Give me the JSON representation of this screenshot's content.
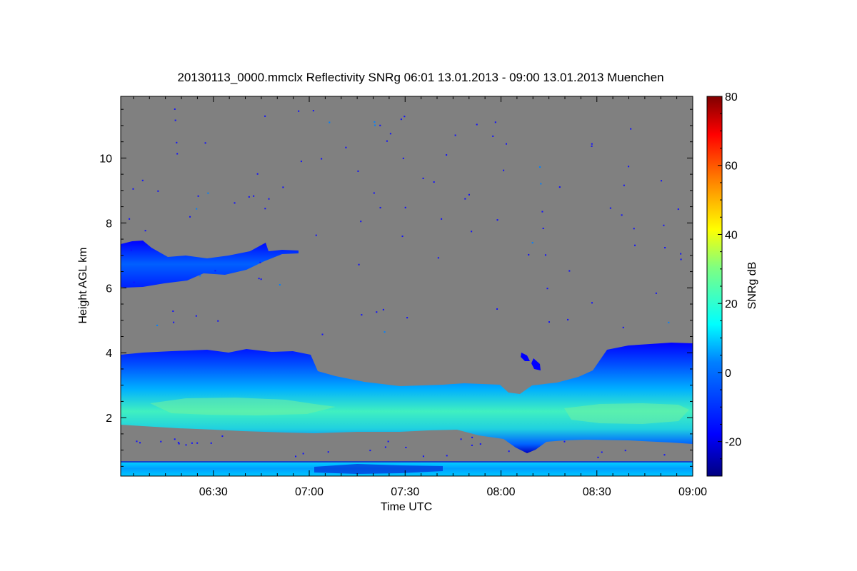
{
  "chart_data": {
    "type": "heatmap",
    "title": "20130113_0000.mmclx Reflectivity SNRg   06:01 13.01.2013 - 09:00 13.01.2013 Muenchen",
    "xlabel": "Time UTC",
    "ylabel": "Height AGL km",
    "colorbar_label": "SNRg dB",
    "x_ticks": [
      "06:30",
      "07:00",
      "07:30",
      "08:00",
      "08:30",
      "09:00"
    ],
    "x_tick_minutes": [
      30,
      60,
      90,
      120,
      150,
      180
    ],
    "xlim_minutes": [
      1,
      180
    ],
    "y_ticks": [
      2,
      4,
      6,
      8,
      10
    ],
    "ylim": [
      0.2,
      11.9
    ],
    "colorbar_ticks": [
      -20,
      0,
      20,
      40,
      60,
      80
    ],
    "colorbar_range": [
      -30,
      80
    ],
    "background_color": "#808080",
    "colormap": [
      "#000080",
      "#0000ff",
      "#0080ff",
      "#00ffff",
      "#80ff80",
      "#ffff00",
      "#ff8000",
      "#ff0000",
      "#800000"
    ],
    "features": [
      {
        "layer": "upper cloud",
        "time_minutes": [
          1,
          55
        ],
        "height_km": [
          6.0,
          7.5
        ],
        "snr_db": [
          -25,
          -12
        ]
      },
      {
        "layer": "main cloud",
        "time_minutes": [
          1,
          180
        ],
        "height_km": [
          1.1,
          4.3
        ],
        "snr_db": [
          -25,
          25
        ]
      },
      {
        "layer": "near-surface band",
        "time_minutes": [
          1,
          180
        ],
        "height_km": [
          0.25,
          0.65
        ],
        "snr_db": [
          -15,
          5
        ]
      }
    ]
  }
}
